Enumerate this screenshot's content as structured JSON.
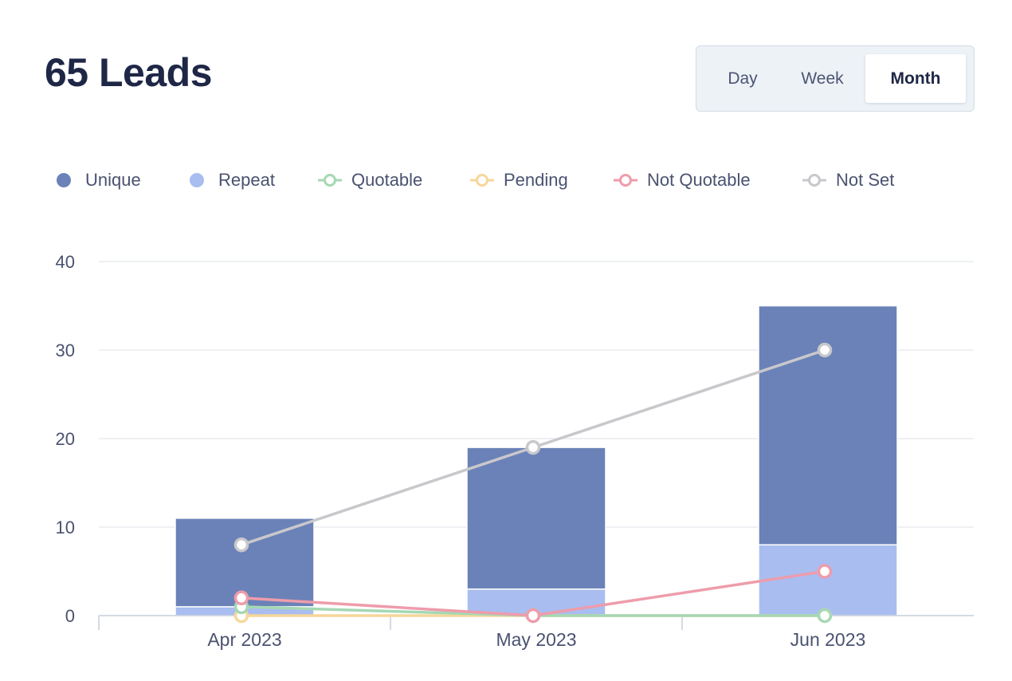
{
  "header": {
    "title": "65 Leads"
  },
  "range_toggle": {
    "options": [
      "Day",
      "Week",
      "Month"
    ],
    "selected": "Month"
  },
  "colors": {
    "Unique": "#6b82b8",
    "Repeat": "#a9bdf0",
    "Quotable": "#a5d8b4",
    "Pending": "#f6d79a",
    "Not Quotable": "#ee9cab",
    "Not Set": "#c8c8cc",
    "grid": "#e8ebef",
    "axis": "#c6cdd8",
    "text": "#4a5270"
  },
  "chart_data": {
    "type": "bar",
    "stacked_bars": true,
    "categories": [
      "Apr 2023",
      "May 2023",
      "Jun 2023"
    ],
    "ylim": [
      0,
      40
    ],
    "yticks": [
      0,
      10,
      20,
      30,
      40
    ],
    "grid": true,
    "legend_position": "top",
    "series": [
      {
        "name": "Unique",
        "kind": "bar",
        "marker": "dot",
        "values": [
          10,
          16,
          27
        ]
      },
      {
        "name": "Repeat",
        "kind": "bar",
        "marker": "dot",
        "values": [
          1,
          3,
          8
        ]
      },
      {
        "name": "Quotable",
        "kind": "line",
        "marker": "circle",
        "values": [
          1,
          0,
          0
        ]
      },
      {
        "name": "Pending",
        "kind": "line",
        "marker": "circle",
        "values": [
          0,
          0,
          0
        ]
      },
      {
        "name": "Not Quotable",
        "kind": "line",
        "marker": "circle",
        "values": [
          2,
          0,
          5
        ]
      },
      {
        "name": "Not Set",
        "kind": "line",
        "marker": "circle",
        "values": [
          8,
          19,
          30
        ]
      }
    ]
  }
}
